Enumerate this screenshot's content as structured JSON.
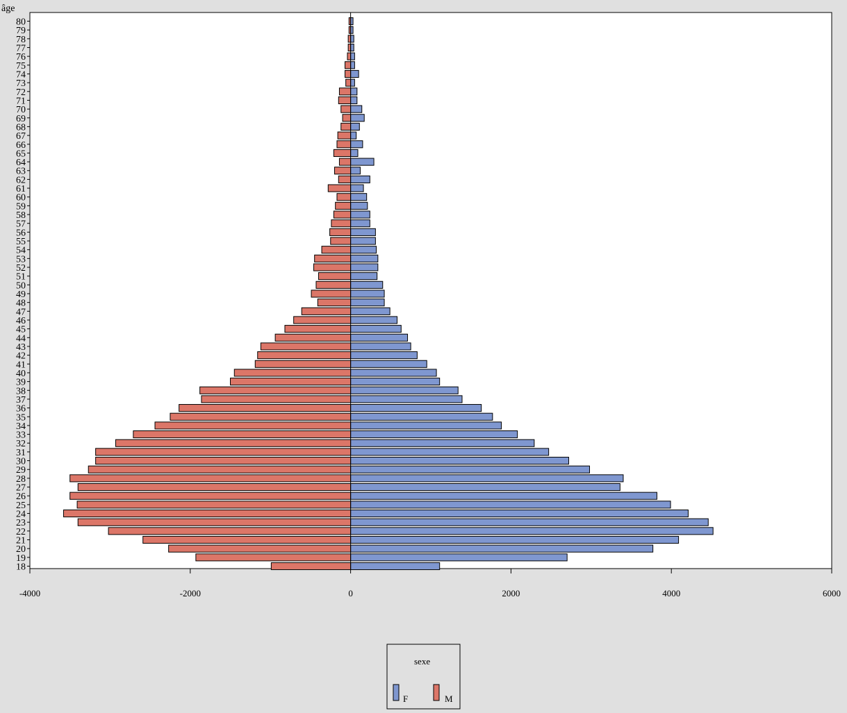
{
  "chart_data": {
    "type": "bar",
    "orientation": "horizontal",
    "layout": "population-pyramid",
    "ylabel": "âge",
    "xlabel": "",
    "xlim": [
      -4000,
      6000
    ],
    "xticks": [
      -4000,
      -2000,
      0,
      2000,
      4000,
      6000
    ],
    "grid": false,
    "legend_position": "bottom-center",
    "legend_title": "sexe",
    "colors": {
      "F": "#7f97d0",
      "M": "#dc7668",
      "background": "#e0e0e0",
      "plot": "#ffffff"
    },
    "categories": [
      18,
      19,
      20,
      21,
      22,
      23,
      24,
      25,
      26,
      27,
      28,
      29,
      30,
      31,
      32,
      33,
      34,
      35,
      36,
      37,
      38,
      39,
      40,
      41,
      42,
      43,
      44,
      45,
      46,
      47,
      48,
      49,
      50,
      51,
      52,
      53,
      54,
      55,
      56,
      57,
      58,
      59,
      60,
      61,
      62,
      63,
      64,
      65,
      66,
      67,
      68,
      69,
      70,
      71,
      72,
      73,
      74,
      75,
      76,
      77,
      78,
      79,
      80
    ],
    "series": [
      {
        "name": "F",
        "values": [
          1110,
          2700,
          3770,
          4090,
          4520,
          4460,
          4210,
          3990,
          3820,
          3360,
          3400,
          2980,
          2720,
          2470,
          2290,
          2080,
          1880,
          1770,
          1630,
          1390,
          1340,
          1110,
          1070,
          950,
          830,
          750,
          710,
          630,
          580,
          490,
          420,
          420,
          400,
          330,
          340,
          340,
          320,
          310,
          310,
          240,
          240,
          210,
          200,
          160,
          240,
          120,
          290,
          90,
          150,
          70,
          110,
          170,
          140,
          80,
          80,
          50,
          100,
          50,
          50,
          40,
          40,
          30,
          30
        ]
      },
      {
        "name": "M",
        "values": [
          -990,
          -1930,
          -2270,
          -2590,
          -3020,
          -3400,
          -3580,
          -3410,
          -3500,
          -3400,
          -3500,
          -3270,
          -3180,
          -3180,
          -2930,
          -2710,
          -2440,
          -2250,
          -2140,
          -1860,
          -1880,
          -1500,
          -1450,
          -1190,
          -1160,
          -1120,
          -940,
          -820,
          -710,
          -610,
          -410,
          -490,
          -430,
          -400,
          -460,
          -450,
          -360,
          -250,
          -260,
          -240,
          -210,
          -190,
          -170,
          -280,
          -150,
          -200,
          -140,
          -210,
          -170,
          -160,
          -120,
          -100,
          -120,
          -150,
          -140,
          -60,
          -70,
          -70,
          -40,
          -30,
          -30,
          -20,
          -20
        ]
      }
    ]
  }
}
